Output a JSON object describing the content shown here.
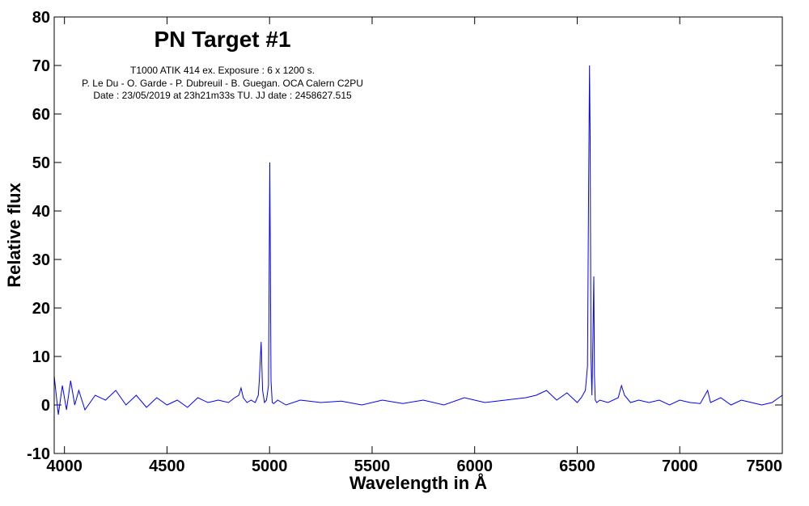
{
  "chart_data": {
    "type": "line",
    "title": "PN Target #1",
    "info_lines": [
      "T1000 ATIK 414 ex. Exposure : 6 x 1200 s.",
      "P. Le Du - O. Garde - P. Dubreuil - B. Guegan. OCA Calern C2PU",
      "Date : 23/05/2019 at 23h21m33s TU. JJ date : 2458627.515"
    ],
    "xlabel": "Wavelength in Å",
    "ylabel": "Relative flux",
    "xlim": [
      3950,
      7500
    ],
    "ylim": [
      -10,
      80
    ],
    "x_ticks": [
      4000,
      4500,
      5000,
      5500,
      6000,
      6500,
      7000,
      7500
    ],
    "y_ticks": [
      -10,
      0,
      10,
      20,
      30,
      40,
      50,
      60,
      70,
      80
    ],
    "line_color": "#0000ff",
    "series": [
      {
        "x": [
          3950,
          3970,
          3990,
          4010,
          4030,
          4050,
          4070,
          4100,
          4150,
          4200,
          4250,
          4300,
          4350,
          4400,
          4450,
          4500,
          4550,
          4600,
          4650,
          4700,
          4750,
          4800,
          4830,
          4850,
          4861,
          4872,
          4890,
          4910,
          4930,
          4945,
          4950,
          4959,
          4966,
          4975,
          4985,
          4995,
          5001,
          5007,
          5013,
          5020,
          5040,
          5080,
          5150,
          5250,
          5350,
          5450,
          5550,
          5650,
          5750,
          5850,
          5950,
          6050,
          6150,
          6250,
          6300,
          6350,
          6400,
          6450,
          6500,
          6520,
          6540,
          6550,
          6555,
          6560,
          6563,
          6567,
          6572,
          6577,
          6581,
          6584,
          6588,
          6595,
          6610,
          6650,
          6700,
          6716,
          6731,
          6760,
          6800,
          6850,
          6900,
          6950,
          7000,
          7050,
          7100,
          7136,
          7150,
          7200,
          7250,
          7300,
          7350,
          7400,
          7450,
          7500
        ],
        "y": [
          6,
          -2,
          4,
          -1,
          5,
          0,
          3,
          -1,
          2,
          1,
          3,
          0,
          2,
          -0.5,
          1.5,
          0,
          1,
          -0.5,
          1.5,
          0.5,
          1,
          0.5,
          1.5,
          2,
          3.5,
          1.5,
          0.5,
          1,
          0.5,
          2,
          5,
          13,
          3,
          0.5,
          1,
          4,
          50,
          5,
          0.5,
          0.3,
          1,
          0,
          1,
          0.5,
          0.8,
          0,
          1,
          0.3,
          1,
          0,
          1.5,
          0.5,
          1,
          1.5,
          2,
          3,
          1,
          2.5,
          0.5,
          1.5,
          3,
          8,
          40,
          70,
          55,
          10,
          2,
          15,
          26.5,
          6,
          1,
          0.5,
          1,
          0.5,
          1.5,
          4,
          2,
          0.5,
          1,
          0.5,
          1,
          0,
          1,
          0.5,
          0.3,
          3,
          0.5,
          1.5,
          0,
          1,
          0.5,
          0,
          0.5,
          2
        ]
      }
    ]
  }
}
